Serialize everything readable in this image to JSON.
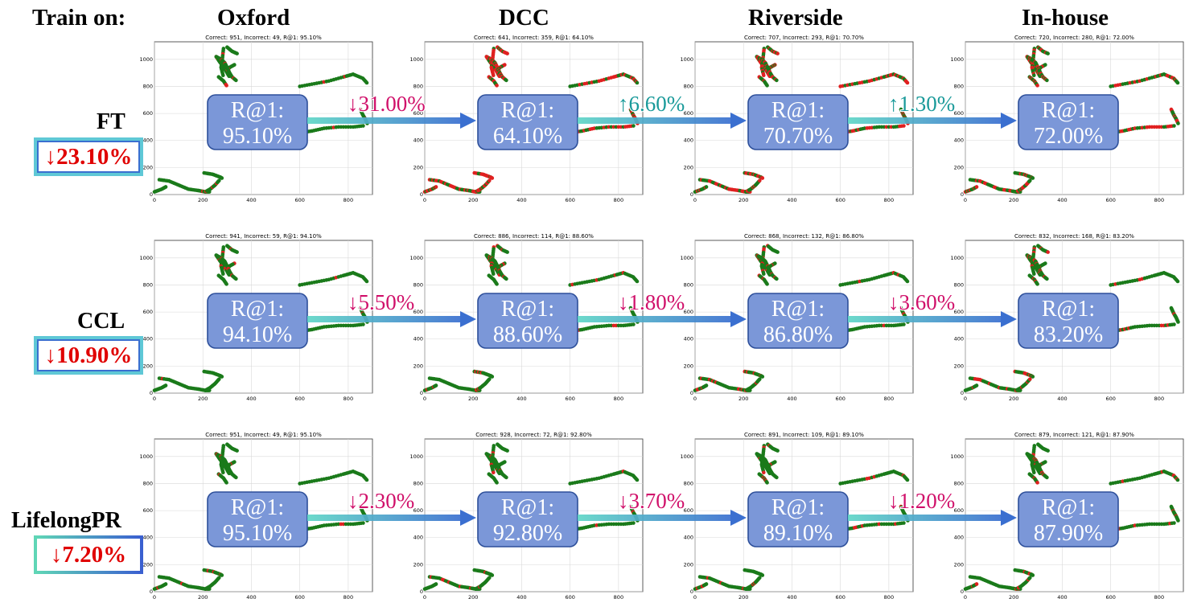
{
  "header": {
    "train_on": "Train on:",
    "datasets": [
      "Oxford",
      "DCC",
      "Riverside",
      "In-house"
    ]
  },
  "methods": [
    {
      "name": "FT",
      "forgetting": "↓23.10%"
    },
    {
      "name": "CCL",
      "forgetting": "↓10.90%"
    },
    {
      "name": "LifelongPR",
      "forgetting": "↓7.20%"
    }
  ],
  "chart_data": {
    "type": "scatter",
    "xticks": [
      "0",
      "200",
      "400",
      "600",
      "800"
    ],
    "yticks": [
      "0",
      "200",
      "400",
      "600",
      "800",
      "1000"
    ],
    "xlim": [
      0,
      900
    ],
    "ylim": [
      0,
      1130
    ],
    "grid": true,
    "colors": {
      "correct": "#1a7a1a",
      "incorrect": "#e02020"
    },
    "panels": [
      [
        {
          "title": "Correct: 951, Incorrect: 49, R@1: 95.10%",
          "r1_label": "R@1:",
          "r1": "95.10%",
          "incorrect_ratio": 0.049
        },
        {
          "title": "Correct: 641, Incorrect: 359, R@1: 64.10%",
          "r1_label": "R@1:",
          "r1": "64.10%",
          "incorrect_ratio": 0.359
        },
        {
          "title": "Correct: 707, Incorrect: 293, R@1: 70.70%",
          "r1_label": "R@1:",
          "r1": "70.70%",
          "incorrect_ratio": 0.293
        },
        {
          "title": "Correct: 720, Incorrect: 280, R@1: 72.00%",
          "r1_label": "R@1:",
          "r1": "72.00%",
          "incorrect_ratio": 0.28
        }
      ],
      [
        {
          "title": "Correct: 941, Incorrect: 59, R@1: 94.10%",
          "r1_label": "R@1:",
          "r1": "94.10%",
          "incorrect_ratio": 0.059
        },
        {
          "title": "Correct: 886, Incorrect: 114, R@1: 88.60%",
          "r1_label": "R@1:",
          "r1": "88.60%",
          "incorrect_ratio": 0.114
        },
        {
          "title": "Correct: 868, Incorrect: 132, R@1: 86.80%",
          "r1_label": "R@1:",
          "r1": "86.80%",
          "incorrect_ratio": 0.132
        },
        {
          "title": "Correct: 832, Incorrect: 168, R@1: 83.20%",
          "r1_label": "R@1:",
          "r1": "83.20%",
          "incorrect_ratio": 0.168
        }
      ],
      [
        {
          "title": "Correct: 951, Incorrect: 49, R@1: 95.10%",
          "r1_label": "R@1:",
          "r1": "95.10%",
          "incorrect_ratio": 0.049
        },
        {
          "title": "Correct: 928, Incorrect: 72, R@1: 92.80%",
          "r1_label": "R@1:",
          "r1": "92.80%",
          "incorrect_ratio": 0.072
        },
        {
          "title": "Correct: 891, Incorrect: 109, R@1: 89.10%",
          "r1_label": "R@1:",
          "r1": "89.10%",
          "incorrect_ratio": 0.109
        },
        {
          "title": "Correct: 879, Incorrect: 121, R@1: 87.90%",
          "r1_label": "R@1:",
          "r1": "87.90%",
          "incorrect_ratio": 0.121
        }
      ]
    ],
    "changes": [
      [
        {
          "text": "↓31.00%",
          "dir": "down"
        },
        {
          "text": "↑6.60%",
          "dir": "up"
        },
        {
          "text": "↑1.30%",
          "dir": "up"
        }
      ],
      [
        {
          "text": "↓5.50%",
          "dir": "down"
        },
        {
          "text": "↓1.80%",
          "dir": "down"
        },
        {
          "text": "↓3.60%",
          "dir": "down"
        }
      ],
      [
        {
          "text": "↓2.30%",
          "dir": "down"
        },
        {
          "text": "↓3.70%",
          "dir": "down"
        },
        {
          "text": "↓1.20%",
          "dir": "down"
        }
      ]
    ],
    "change_colors": {
      "down": "#d0106a",
      "up": "#1a9a9a"
    }
  }
}
